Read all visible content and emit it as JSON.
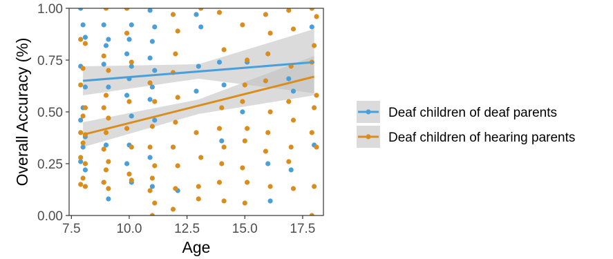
{
  "chart_data": {
    "type": "scatter",
    "title": "",
    "xlabel": "Age",
    "ylabel": "Overall Accuracy (%)",
    "xlim": [
      7.4,
      18.4
    ],
    "ylim": [
      0.0,
      1.0
    ],
    "x_ticks": [
      7.5,
      10.0,
      12.5,
      15.0,
      17.5
    ],
    "x_tick_labels": [
      "7.5",
      "10.0",
      "12.5",
      "15.0",
      "17.5"
    ],
    "y_ticks": [
      0.0,
      0.25,
      0.5,
      0.75,
      1.0
    ],
    "y_tick_labels": [
      "0.00",
      "0.25",
      "0.50",
      "0.75",
      "1.00"
    ],
    "grid": false,
    "legend_position": "right",
    "band_color": "#bdbdbd",
    "series": [
      {
        "name": "Deaf children of deaf parents",
        "color": "#4a9fd8",
        "fit_line": {
          "x": [
            8.0,
            18.0
          ],
          "y": [
            0.65,
            0.74
          ]
        },
        "ci_band": {
          "x": [
            8.0,
            13.0,
            18.0
          ],
          "lower": [
            0.58,
            0.66,
            0.59
          ],
          "upper": [
            0.72,
            0.73,
            0.9
          ]
        },
        "points": [
          [
            7.9,
            1.0
          ],
          [
            8.0,
            0.92
          ],
          [
            8.1,
            0.86
          ],
          [
            7.9,
            0.72
          ],
          [
            8.1,
            0.62
          ],
          [
            8.0,
            0.52
          ],
          [
            7.9,
            0.46
          ],
          [
            8.1,
            0.38
          ],
          [
            8.0,
            0.33
          ],
          [
            7.9,
            0.26
          ],
          [
            8.1,
            0.22
          ],
          [
            8.9,
            0.92
          ],
          [
            9.1,
            0.85
          ],
          [
            9.0,
            0.82
          ],
          [
            8.9,
            0.73
          ],
          [
            9.1,
            0.62
          ],
          [
            9.0,
            0.34
          ],
          [
            8.9,
            0.16
          ],
          [
            9.1,
            0.08
          ],
          [
            9.9,
            1.0
          ],
          [
            10.1,
            0.92
          ],
          [
            10.0,
            0.85
          ],
          [
            9.9,
            0.78
          ],
          [
            10.1,
            0.72
          ],
          [
            10.0,
            0.66
          ],
          [
            9.9,
            0.58
          ],
          [
            10.1,
            0.48
          ],
          [
            10.0,
            0.34
          ],
          [
            9.9,
            0.25
          ],
          [
            10.1,
            0.16
          ],
          [
            10.9,
            0.99
          ],
          [
            11.1,
            0.91
          ],
          [
            11.0,
            0.84
          ],
          [
            10.9,
            0.76
          ],
          [
            11.1,
            0.7
          ],
          [
            11.0,
            0.62
          ],
          [
            10.9,
            0.56
          ],
          [
            11.1,
            0.46
          ],
          [
            10.9,
            0.28
          ],
          [
            11.0,
            0.14
          ],
          [
            11.9,
            0.33
          ],
          [
            12.1,
            0.12
          ],
          [
            12.9,
            0.97
          ],
          [
            13.1,
            0.91
          ],
          [
            13.0,
            0.72
          ],
          [
            12.9,
            0.6
          ],
          [
            13.9,
            0.74
          ],
          [
            14.1,
            0.63
          ],
          [
            14.0,
            0.36
          ],
          [
            14.9,
            0.5
          ],
          [
            15.1,
            0.74
          ],
          [
            16.0,
            0.25
          ],
          [
            16.1,
            0.07
          ],
          [
            16.9,
            0.66
          ],
          [
            17.1,
            0.6
          ],
          [
            17.0,
            0.22
          ],
          [
            17.9,
            0.91
          ],
          [
            18.0,
            0.34
          ]
        ]
      },
      {
        "name": "Deaf children of hearing parents",
        "color": "#d98d1d",
        "fit_line": {
          "x": [
            8.0,
            18.0
          ],
          "y": [
            0.39,
            0.67
          ]
        },
        "ci_band": {
          "x": [
            8.0,
            13.0,
            18.0
          ],
          "lower": [
            0.33,
            0.49,
            0.58
          ],
          "upper": [
            0.45,
            0.56,
            0.77
          ]
        },
        "points": [
          [
            7.9,
            0.85
          ],
          [
            8.1,
            0.83
          ],
          [
            8.0,
            0.71
          ],
          [
            7.9,
            0.63
          ],
          [
            8.1,
            0.52
          ],
          [
            8.0,
            0.48
          ],
          [
            7.9,
            0.4
          ],
          [
            8.1,
            0.39
          ],
          [
            8.0,
            0.35
          ],
          [
            7.9,
            0.28
          ],
          [
            8.1,
            0.25
          ],
          [
            8.0,
            0.18
          ],
          [
            7.9,
            0.15
          ],
          [
            8.1,
            0.14
          ],
          [
            8.9,
            0.77
          ],
          [
            9.1,
            0.7
          ],
          [
            9.0,
            0.58
          ],
          [
            8.9,
            0.52
          ],
          [
            9.1,
            0.47
          ],
          [
            9.0,
            0.4
          ],
          [
            8.9,
            0.32
          ],
          [
            9.1,
            0.26
          ],
          [
            9.0,
            0.22
          ],
          [
            8.9,
            0.16
          ],
          [
            9.1,
            0.13
          ],
          [
            9.0,
            1.0
          ],
          [
            9.9,
            0.88
          ],
          [
            10.1,
            0.74
          ],
          [
            10.0,
            0.55
          ],
          [
            9.9,
            0.42
          ],
          [
            10.1,
            0.33
          ],
          [
            10.0,
            0.2
          ],
          [
            10.1,
            0.17
          ],
          [
            9.9,
            1.0
          ],
          [
            10.9,
            0.64
          ],
          [
            11.1,
            0.55
          ],
          [
            11.0,
            0.43
          ],
          [
            10.9,
            0.33
          ],
          [
            11.1,
            0.24
          ],
          [
            11.0,
            0.18
          ],
          [
            10.9,
            0.12
          ],
          [
            11.1,
            0.06
          ],
          [
            11.0,
            0.0
          ],
          [
            11.9,
            0.97
          ],
          [
            12.1,
            0.89
          ],
          [
            12.0,
            0.78
          ],
          [
            11.9,
            0.69
          ],
          [
            12.1,
            0.57
          ],
          [
            12.0,
            0.45
          ],
          [
            11.9,
            0.33
          ],
          [
            12.1,
            0.24
          ],
          [
            12.0,
            0.13
          ],
          [
            11.9,
            0.03
          ],
          [
            12.9,
            0.4
          ],
          [
            13.1,
            0.28
          ],
          [
            13.0,
            0.14
          ],
          [
            13.0,
            0.08
          ],
          [
            13.1,
            1.0
          ],
          [
            13.9,
            0.98
          ],
          [
            14.1,
            0.8
          ],
          [
            14.0,
            0.52
          ],
          [
            13.9,
            0.42
          ],
          [
            14.1,
            0.33
          ],
          [
            14.0,
            0.25
          ],
          [
            13.9,
            0.16
          ],
          [
            14.1,
            0.07
          ],
          [
            14.9,
            0.92
          ],
          [
            15.1,
            0.75
          ],
          [
            15.0,
            0.63
          ],
          [
            14.9,
            0.55
          ],
          [
            15.1,
            0.42
          ],
          [
            15.0,
            0.36
          ],
          [
            14.9,
            0.23
          ],
          [
            15.1,
            0.16
          ],
          [
            15.0,
            0.06
          ],
          [
            15.9,
            0.97
          ],
          [
            16.1,
            0.88
          ],
          [
            16.0,
            0.78
          ],
          [
            15.9,
            0.65
          ],
          [
            16.1,
            0.5
          ],
          [
            16.0,
            0.4
          ],
          [
            15.9,
            0.31
          ],
          [
            16.1,
            0.14
          ],
          [
            16.9,
            0.99
          ],
          [
            17.1,
            0.9
          ],
          [
            17.0,
            0.72
          ],
          [
            16.9,
            0.55
          ],
          [
            17.1,
            0.46
          ],
          [
            17.0,
            0.33
          ],
          [
            16.9,
            0.26
          ],
          [
            17.1,
            0.13
          ],
          [
            17.9,
            1.0
          ],
          [
            18.1,
            0.96
          ],
          [
            18.0,
            0.82
          ],
          [
            17.9,
            0.74
          ],
          [
            18.1,
            0.58
          ],
          [
            18.0,
            0.52
          ],
          [
            17.9,
            0.4
          ],
          [
            18.1,
            0.33
          ],
          [
            18.0,
            0.14
          ],
          [
            17.9,
            0.0
          ]
        ]
      }
    ]
  }
}
